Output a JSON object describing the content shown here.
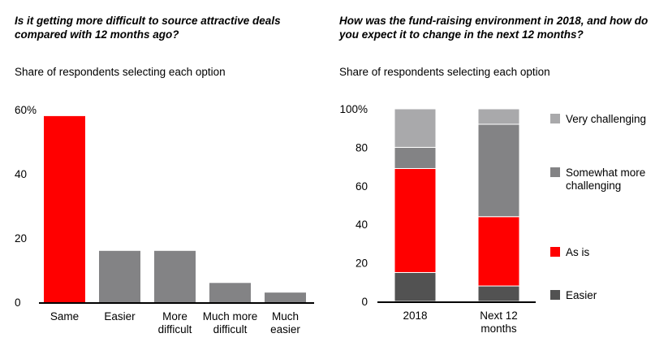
{
  "chart_data": [
    {
      "type": "bar",
      "title": "Is it getting more difficult to source attractive deals compared with 12 months ago?",
      "subtitle": "Share of respondents selecting each option",
      "categories": [
        [
          "Same"
        ],
        [
          "Easier"
        ],
        [
          "More",
          "difficult"
        ],
        [
          "Much more",
          "difficult"
        ],
        [
          "Much",
          "easier"
        ]
      ],
      "values": [
        58,
        16,
        16,
        6,
        3
      ],
      "colors": [
        "#ff0000",
        "#838385",
        "#838385",
        "#838385",
        "#838385"
      ],
      "ylim": [
        0,
        60
      ],
      "yticks": [
        0,
        20,
        40,
        60
      ],
      "ytick_labels": [
        "0",
        "20",
        "40",
        "60%"
      ],
      "xlabel": "",
      "ylabel": ""
    },
    {
      "type": "bar",
      "stacked": true,
      "title": "How was the fund-raising environment in 2018, and how do you expect it to change in the next 12 months?",
      "subtitle": "Share of respondents selecting each option",
      "categories": [
        [
          "2018"
        ],
        [
          "Next 12",
          "months"
        ]
      ],
      "series": [
        {
          "name": "Easier",
          "values": [
            15,
            8
          ],
          "color": "#525252"
        },
        {
          "name": "As is",
          "values": [
            54,
            36
          ],
          "color": "#ff0000"
        },
        {
          "name": "Somewhat more challenging",
          "legend_lines": [
            "Somewhat more",
            "challenging"
          ],
          "values": [
            11,
            48
          ],
          "color": "#838385"
        },
        {
          "name": "Very challenging",
          "values": [
            20,
            8
          ],
          "color": "#a9a9ab"
        }
      ],
      "ylim": [
        0,
        100
      ],
      "yticks": [
        0,
        20,
        40,
        60,
        80,
        100
      ],
      "ytick_labels": [
        "0",
        "20",
        "40",
        "60",
        "80",
        "100%"
      ],
      "legend_position": "right",
      "xlabel": "",
      "ylabel": ""
    }
  ]
}
